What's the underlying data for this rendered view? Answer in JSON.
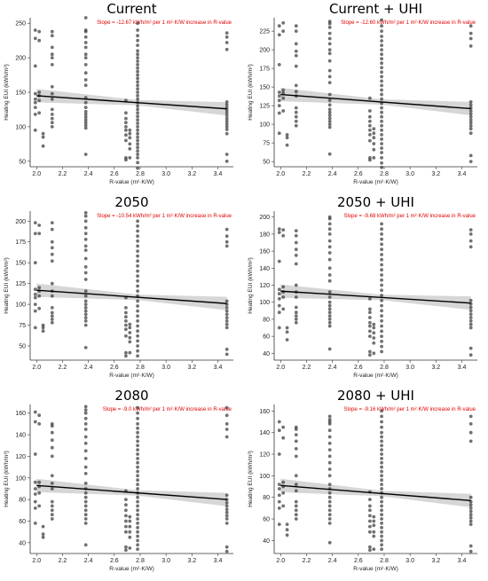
{
  "chart_data": [
    {
      "type": "scatter",
      "title": "Current",
      "annotation": "Slope = -12.67 kWh/m² per 1 m²·K/W increase in R-value",
      "xlabel": "R-value (m²·K/W)",
      "ylabel": "Heating EUI (kWh/m²)",
      "xlim": [
        1.95,
        3.52
      ],
      "ylim": [
        42,
        258
      ],
      "xticks": [
        2.0,
        2.2,
        2.4,
        2.6,
        2.8,
        3.0,
        3.2,
        3.4
      ],
      "yticks": [
        50,
        100,
        150,
        200,
        250
      ],
      "regression": {
        "x": [
          2.0,
          3.47
        ],
        "y": [
          145,
          126
        ]
      },
      "columns": [
        {
          "x": 1.99,
          "y": [
            95,
            118,
            128,
            135,
            140,
            148,
            188,
            228,
            240
          ]
        },
        {
          "x": 2.02,
          "y": [
            120,
            138,
            145,
            150,
            225,
            238
          ]
        },
        {
          "x": 2.05,
          "y": [
            72,
            85,
            90
          ]
        },
        {
          "x": 2.12,
          "y": [
            100,
            106,
            112,
            118,
            125,
            140,
            148,
            158,
            190,
            200,
            205,
            215,
            232,
            238
          ]
        },
        {
          "x": 2.38,
          "y": [
            60,
            98,
            102,
            106,
            110,
            114,
            118,
            122,
            128,
            135,
            142,
            160,
            168,
            178,
            190,
            200,
            205,
            215,
            222,
            230,
            238,
            240,
            258
          ]
        },
        {
          "x": 2.69,
          "y": [
            52,
            55,
            80,
            88,
            95,
            100,
            106,
            112,
            120,
            138
          ]
        },
        {
          "x": 2.72,
          "y": [
            55,
            68,
            75,
            84,
            90,
            95
          ]
        },
        {
          "x": 2.78,
          "y": [
            40,
            48,
            55,
            60,
            65,
            70,
            75,
            80,
            85,
            90,
            95,
            100,
            105,
            110,
            115,
            120,
            125,
            130,
            135,
            140,
            145,
            150,
            155,
            160,
            165,
            170,
            175,
            180,
            185,
            190,
            195,
            200,
            205,
            210,
            218,
            225,
            232,
            240,
            250
          ]
        },
        {
          "x": 3.47,
          "y": [
            50,
            60,
            90,
            96,
            100,
            104,
            108,
            112,
            116,
            120,
            124,
            128,
            132,
            136,
            212,
            222,
            230,
            236
          ]
        }
      ]
    },
    {
      "type": "scatter",
      "title": "Current + UHI",
      "annotation": "Slope = -12.60 kWh/m² per 1 m²·K/W increase in R-value",
      "xlabel": "R-value (m²·K/W)",
      "ylabel": "Heating EUI (kWh/m²)",
      "xlim": [
        1.95,
        3.52
      ],
      "ylim": [
        43,
        243
      ],
      "xticks": [
        2.0,
        2.2,
        2.4,
        2.6,
        2.8,
        3.0,
        3.2,
        3.4
      ],
      "yticks": [
        50,
        75,
        100,
        125,
        150,
        175,
        200,
        225
      ],
      "regression": {
        "x": [
          2.0,
          3.47
        ],
        "y": [
          140,
          121
        ]
      },
      "columns": [
        {
          "x": 1.99,
          "y": [
            88,
            115,
            125,
            132,
            138,
            143,
            180,
            220,
            232
          ]
        },
        {
          "x": 2.02,
          "y": [
            118,
            135,
            142,
            146,
            225,
            236
          ]
        },
        {
          "x": 2.05,
          "y": [
            72,
            82,
            86
          ]
        },
        {
          "x": 2.12,
          "y": [
            98,
            104,
            110,
            116,
            122,
            138,
            144,
            152,
            178,
            192,
            198,
            208,
            225,
            232
          ]
        },
        {
          "x": 2.38,
          "y": [
            60,
            96,
            100,
            104,
            108,
            112,
            116,
            120,
            126,
            132,
            140,
            156,
            164,
            172,
            185,
            195,
            200,
            208,
            215,
            222,
            230,
            235,
            238
          ]
        },
        {
          "x": 2.69,
          "y": [
            52,
            55,
            78,
            86,
            92,
            98,
            104,
            110,
            118,
            135
          ]
        },
        {
          "x": 2.72,
          "y": [
            55,
            66,
            74,
            82,
            88,
            94
          ]
        },
        {
          "x": 2.78,
          "y": [
            42,
            48,
            55,
            62,
            68,
            74,
            80,
            86,
            92,
            98,
            104,
            110,
            116,
            122,
            128,
            134,
            140,
            146,
            152,
            158,
            164,
            170,
            176,
            182,
            188,
            194,
            200,
            206,
            212,
            218,
            225,
            232,
            240
          ]
        },
        {
          "x": 3.47,
          "y": [
            50,
            58,
            88,
            94,
            98,
            102,
            106,
            110,
            114,
            118,
            122,
            126,
            130,
            205,
            215,
            222,
            232
          ]
        }
      ]
    },
    {
      "type": "scatter",
      "title": "2050",
      "annotation": "Slope = -10.54 kWh/m² per 1 m²·K/W increase in R-value",
      "xlabel": "R-value (m²·K/W)",
      "ylabel": "Heating EUI (kWh/m²)",
      "xlim": [
        1.95,
        3.52
      ],
      "ylim": [
        33,
        212
      ],
      "xticks": [
        2.0,
        2.2,
        2.4,
        2.6,
        2.8,
        3.0,
        3.2,
        3.4
      ],
      "yticks": [
        50,
        75,
        100,
        125,
        150,
        175,
        200
      ],
      "regression": {
        "x": [
          2.0,
          3.47
        ],
        "y": [
          117,
          101
        ]
      },
      "columns": [
        {
          "x": 1.99,
          "y": [
            72,
            92,
            100,
            108,
            112,
            118,
            150,
            185,
            198
          ]
        },
        {
          "x": 2.02,
          "y": [
            95,
            110,
            116,
            120,
            185,
            195
          ]
        },
        {
          "x": 2.05,
          "y": [
            68,
            72,
            75
          ]
        },
        {
          "x": 2.12,
          "y": [
            78,
            82,
            86,
            90,
            96,
            110,
            116,
            125,
            152,
            160,
            168,
            175,
            190,
            198
          ]
        },
        {
          "x": 2.38,
          "y": [
            48,
            75,
            80,
            84,
            88,
            92,
            96,
            100,
            104,
            110,
            116,
            130,
            138,
            145,
            155,
            165,
            170,
            178,
            185,
            192,
            200,
            206,
            210
          ]
        },
        {
          "x": 2.69,
          "y": [
            38,
            42,
            62,
            70,
            75,
            80,
            85,
            90,
            96,
            108
          ]
        },
        {
          "x": 2.72,
          "y": [
            42,
            55,
            60,
            66,
            72,
            76
          ]
        },
        {
          "x": 2.78,
          "y": [
            38,
            44,
            50,
            56,
            62,
            68,
            74,
            80,
            86,
            92,
            98,
            104,
            110,
            116,
            122,
            128,
            134,
            140,
            146,
            152,
            158,
            164,
            170,
            176,
            182,
            188,
            194,
            200
          ]
        },
        {
          "x": 3.47,
          "y": [
            40,
            46,
            72,
            76,
            80,
            84,
            88,
            92,
            96,
            100,
            104,
            170,
            175,
            182,
            190
          ]
        }
      ]
    },
    {
      "type": "scatter",
      "title": "2050 + UHI",
      "annotation": "Slope = -9.68 kWh/m² per 1 m²·K/W increase in R-value",
      "xlabel": "R-value (m²·K/W)",
      "ylabel": "Heating EUI (kWh/m²)",
      "xlim": [
        1.95,
        3.52
      ],
      "ylim": [
        32,
        207
      ],
      "xticks": [
        2.0,
        2.2,
        2.4,
        2.6,
        2.8,
        3.0,
        3.2,
        3.4
      ],
      "yticks": [
        40,
        60,
        80,
        100,
        120,
        140,
        160,
        180,
        200
      ],
      "regression": {
        "x": [
          2.0,
          3.47
        ],
        "y": [
          113,
          99
        ]
      },
      "columns": [
        {
          "x": 1.99,
          "y": [
            70,
            88,
            96,
            104,
            110,
            115,
            148,
            182,
            186
          ]
        },
        {
          "x": 2.02,
          "y": [
            92,
            106,
            112,
            118,
            178,
            185
          ]
        },
        {
          "x": 2.05,
          "y": [
            56,
            65,
            70
          ]
        },
        {
          "x": 2.12,
          "y": [
            76,
            80,
            84,
            88,
            94,
            106,
            112,
            120,
            145,
            155,
            162,
            170,
            178,
            184
          ]
        },
        {
          "x": 2.38,
          "y": [
            45,
            72,
            76,
            80,
            84,
            88,
            92,
            96,
            100,
            106,
            112,
            125,
            132,
            140,
            150,
            158,
            165,
            172,
            180,
            186,
            192,
            198,
            200
          ]
        },
        {
          "x": 2.69,
          "y": [
            38,
            42,
            60,
            66,
            72,
            76,
            82,
            88,
            92,
            104
          ]
        },
        {
          "x": 2.72,
          "y": [
            40,
            52,
            58,
            64,
            70,
            74
          ]
        },
        {
          "x": 2.78,
          "y": [
            42,
            48,
            54,
            60,
            66,
            72,
            78,
            84,
            90,
            96,
            102,
            108,
            114,
            120,
            126,
            132,
            138,
            144,
            150,
            156,
            162,
            168,
            174,
            180,
            186,
            192
          ]
        },
        {
          "x": 3.47,
          "y": [
            38,
            46,
            70,
            74,
            78,
            82,
            86,
            90,
            94,
            98,
            102,
            165,
            172,
            180,
            185
          ]
        }
      ]
    },
    {
      "type": "scatter",
      "title": "2080",
      "annotation": "Slope = -9.0 kWh/m² per 1 m²·K/W increase in R-value",
      "xlabel": "R-value (m²·K/W)",
      "ylabel": "Heating EUI (kWh/m²)",
      "xlim": [
        1.95,
        3.52
      ],
      "ylim": [
        30,
        168
      ],
      "xticks": [
        2.0,
        2.2,
        2.4,
        2.6,
        2.8,
        3.0,
        3.2,
        3.4
      ],
      "yticks": [
        40,
        60,
        80,
        100,
        120,
        140,
        160
      ],
      "regression": {
        "x": [
          2.0,
          3.47
        ],
        "y": [
          93,
          80
        ]
      },
      "columns": [
        {
          "x": 1.99,
          "y": [
            58,
            72,
            78,
            85,
            90,
            96,
            122,
            152,
            161
          ]
        },
        {
          "x": 2.02,
          "y": [
            74,
            86,
            92,
            96,
            150,
            158
          ]
        },
        {
          "x": 2.05,
          "y": [
            45,
            48,
            55
          ]
        },
        {
          "x": 2.12,
          "y": [
            62,
            66,
            70,
            74,
            78,
            90,
            95,
            102,
            120,
            128,
            135,
            142,
            148,
            150
          ]
        },
        {
          "x": 2.38,
          "y": [
            38,
            58,
            62,
            66,
            70,
            74,
            78,
            82,
            86,
            90,
            95,
            104,
            110,
            118,
            125,
            132,
            138,
            145,
            150,
            155,
            160,
            163,
            166
          ]
        },
        {
          "x": 2.69,
          "y": [
            33,
            36,
            50,
            55,
            60,
            65,
            70,
            75,
            80,
            88
          ]
        },
        {
          "x": 2.72,
          "y": [
            35,
            45,
            50,
            55,
            60,
            64
          ]
        },
        {
          "x": 2.78,
          "y": [
            34,
            38,
            42,
            46,
            50,
            54,
            58,
            62,
            66,
            70,
            74,
            78,
            82,
            86,
            90,
            94,
            98,
            102,
            106,
            110,
            114,
            118,
            122,
            126,
            130,
            134,
            138,
            142,
            146,
            150,
            155,
            160,
            165
          ]
        },
        {
          "x": 3.47,
          "y": [
            32,
            36,
            58,
            62,
            65,
            68,
            71,
            74,
            77,
            80,
            84,
            138,
            145,
            150,
            158,
            165
          ]
        }
      ]
    },
    {
      "type": "scatter",
      "title": "2080 + UHI",
      "annotation": "Slope = -9.16 kWh/m² per 1 m²·K/W increase in R-value",
      "xlabel": "R-value (m²·K/W)",
      "ylabel": "Heating EUI (kWh/m²)",
      "xlim": [
        1.95,
        3.52
      ],
      "ylim": [
        28,
        166
      ],
      "xticks": [
        2.0,
        2.2,
        2.4,
        2.6,
        2.8,
        3.0,
        3.2,
        3.4
      ],
      "yticks": [
        40,
        60,
        80,
        100,
        120,
        140,
        160
      ],
      "regression": {
        "x": [
          2.0,
          3.47
        ],
        "y": [
          91,
          77
        ]
      },
      "columns": [
        {
          "x": 1.99,
          "y": [
            55,
            70,
            76,
            82,
            88,
            92,
            120,
            142,
            150
          ]
        },
        {
          "x": 2.02,
          "y": [
            72,
            84,
            90,
            94,
            135,
            145
          ]
        },
        {
          "x": 2.05,
          "y": [
            45,
            50,
            55
          ]
        },
        {
          "x": 2.12,
          "y": [
            60,
            64,
            68,
            72,
            76,
            86,
            92,
            100,
            118,
            125,
            132,
            138,
            143,
            145
          ]
        },
        {
          "x": 2.38,
          "y": [
            38,
            56,
            60,
            64,
            68,
            72,
            76,
            80,
            84,
            88,
            92,
            100,
            106,
            112,
            118,
            124,
            130,
            136,
            142,
            148,
            150,
            152,
            155
          ]
        },
        {
          "x": 2.69,
          "y": [
            31,
            34,
            48,
            53,
            58,
            63,
            68,
            72,
            78,
            85
          ]
        },
        {
          "x": 2.72,
          "y": [
            32,
            44,
            48,
            54,
            58,
            62
          ]
        },
        {
          "x": 2.78,
          "y": [
            32,
            36,
            40,
            44,
            48,
            52,
            56,
            60,
            64,
            68,
            72,
            76,
            80,
            84,
            88,
            92,
            96,
            100,
            104,
            108,
            112,
            116,
            120,
            124,
            128,
            132,
            136,
            140,
            145,
            150,
            155,
            160
          ]
        },
        {
          "x": 3.47,
          "y": [
            30,
            35,
            55,
            58,
            61,
            64,
            67,
            70,
            73,
            76,
            80,
            132,
            140,
            148,
            155
          ]
        }
      ]
    }
  ]
}
